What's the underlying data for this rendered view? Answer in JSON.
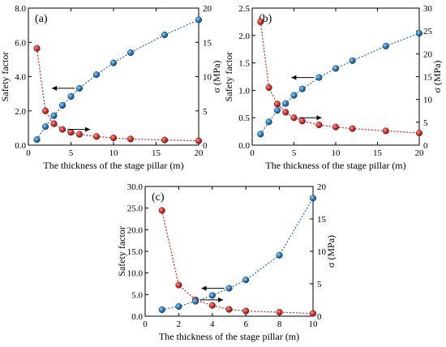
{
  "colors": {
    "left_series": "#d0302a",
    "right_series": "#2a7bbf",
    "axis": "#000000"
  },
  "chart_data": [
    {
      "type": "scatter",
      "panel_label": "(a)",
      "xlabel": "The thickness of the stage pillar (m)",
      "ylabel_left": "Safety factor",
      "ylabel_right": "σ (MPa)",
      "xlim": [
        0,
        20
      ],
      "xticks": [
        "0",
        "5",
        "10",
        "15",
        "20"
      ],
      "ylim_left": [
        0,
        8
      ],
      "yticks_left": [
        "0.0",
        "2.0",
        "4.0",
        "6.0",
        "8.0"
      ],
      "ylim_right": [
        0,
        20
      ],
      "yticks_right": [
        "0",
        "5",
        "10",
        "15",
        "20"
      ],
      "series": [
        {
          "axis": "left",
          "color": "red",
          "x": [
            1,
            2,
            3,
            4,
            5,
            6,
            8,
            10,
            12,
            16,
            20
          ],
          "y": [
            5.65,
            2.0,
            1.25,
            0.92,
            0.75,
            0.63,
            0.5,
            0.42,
            0.36,
            0.3,
            0.25
          ]
        },
        {
          "axis": "right",
          "color": "blue",
          "x": [
            1,
            2,
            3,
            4,
            5,
            6,
            8,
            10,
            12,
            16,
            20
          ],
          "y": [
            0.8,
            2.7,
            4.3,
            5.8,
            7.1,
            8.3,
            10.3,
            12.0,
            13.5,
            16.1,
            18.3
          ]
        }
      ],
      "annotations": [
        "arrow pointing right near the red series",
        "arrow pointing left near the blue series"
      ]
    },
    {
      "type": "scatter",
      "panel_label": "(b)",
      "xlabel": "The thickness of the stage pillar (m)",
      "ylabel_left": "Safety factor",
      "ylabel_right": "σ (MPa)",
      "xlim": [
        0,
        20
      ],
      "xticks": [
        "0",
        "5",
        "10",
        "15",
        "20"
      ],
      "ylim_left": [
        0,
        2.5
      ],
      "yticks_left": [
        "0.0",
        "0.5",
        "1.0",
        "1.5",
        "2.0",
        "2.5"
      ],
      "ylim_right": [
        0,
        30
      ],
      "yticks_right": [
        "0",
        "5",
        "10",
        "15",
        "20",
        "25",
        "30"
      ],
      "series": [
        {
          "axis": "left",
          "color": "red",
          "x": [
            1,
            2,
            3,
            4,
            5,
            6,
            8,
            10,
            12,
            16,
            20
          ],
          "y": [
            2.25,
            1.05,
            0.75,
            0.6,
            0.5,
            0.44,
            0.37,
            0.33,
            0.3,
            0.26,
            0.22
          ]
        },
        {
          "axis": "right",
          "color": "blue",
          "x": [
            1,
            2,
            3,
            4,
            5,
            6,
            8,
            10,
            12,
            16,
            20
          ],
          "y": [
            2.4,
            5.1,
            7.6,
            9.1,
            10.9,
            12.3,
            14.8,
            16.8,
            18.5,
            21.7,
            24.5
          ]
        }
      ],
      "annotations": [
        "arrow pointing right near the red series",
        "arrow pointing left near the blue series"
      ]
    },
    {
      "type": "scatter",
      "panel_label": "(c)",
      "xlabel": "The thickness of the stage pillar (m)",
      "ylabel_left": "Safety factor",
      "ylabel_right": "σ (MPa)",
      "xlim": [
        0,
        10
      ],
      "xticks": [
        "0",
        "2",
        "4",
        "6",
        "8",
        "10"
      ],
      "ylim_left": [
        -2.5,
        30
      ],
      "yticks_left": [
        "0.0",
        "5.0",
        "10.0",
        "15.0",
        "20.0",
        "25.0",
        "30.0"
      ],
      "ylim_right": [
        0,
        20
      ],
      "yticks_right": [
        "0",
        "5",
        "10",
        "15",
        "20"
      ],
      "series": [
        {
          "axis": "left",
          "color": "red",
          "x": [
            1,
            2,
            3,
            4,
            5,
            6,
            8,
            10
          ],
          "y": [
            24.0,
            5.3,
            1.6,
            0.2,
            -0.8,
            -1.2,
            -1.5,
            -1.8
          ]
        },
        {
          "axis": "right",
          "color": "blue",
          "x": [
            1,
            2,
            3,
            4,
            5,
            6,
            8,
            10
          ],
          "y": [
            1.0,
            1.5,
            2.3,
            3.2,
            4.3,
            5.6,
            9.4,
            18.2
          ]
        }
      ],
      "annotations": [
        "arrow pointing right near the red series",
        "arrow pointing left near the blue series"
      ]
    }
  ]
}
